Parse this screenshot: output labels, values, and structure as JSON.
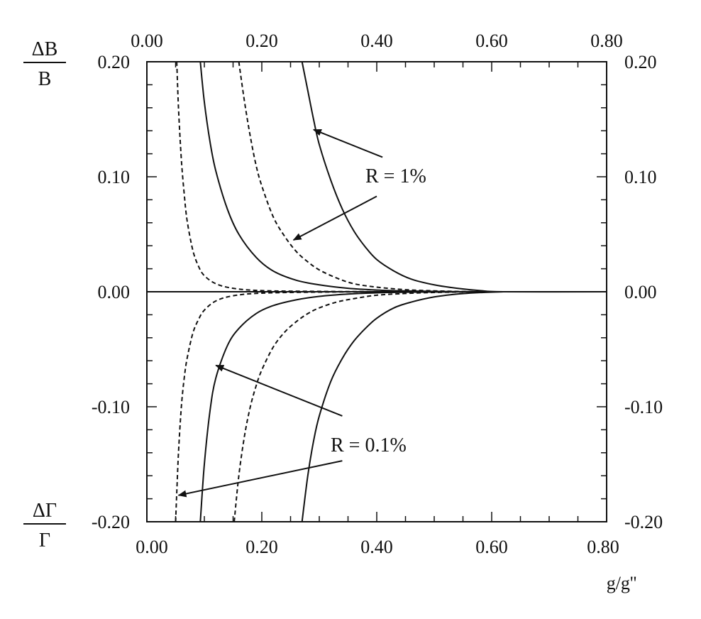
{
  "chart_data": {
    "type": "line",
    "title": "",
    "xlabel": "g/g''",
    "ylabel_top": {
      "numerator": "ΔB",
      "denominator": "B"
    },
    "ylabel_bottom": {
      "numerator": "ΔΓ",
      "denominator": "Γ"
    },
    "xlim": [
      0.0,
      0.8
    ],
    "ylim": [
      -0.2,
      0.2
    ],
    "xticks": [
      "0.00",
      "0.20",
      "0.40",
      "0.60",
      "0.80"
    ],
    "yticks": [
      "-0.20",
      "-0.10",
      "0.00",
      "0.10",
      "0.20"
    ],
    "grid": false,
    "annotations": [
      {
        "text": "R = 1%"
      },
      {
        "text": "R = 0.1%"
      }
    ],
    "series": [
      {
        "group": "R = 1%",
        "style": "solid",
        "panel": "upper",
        "x": [
          0.093,
          0.1,
          0.11,
          0.12,
          0.14,
          0.16,
          0.19,
          0.22,
          0.26,
          0.3,
          0.35,
          0.4,
          0.45,
          0.5,
          0.55,
          0.6,
          0.8
        ],
        "y": [
          0.2,
          0.165,
          0.13,
          0.105,
          0.072,
          0.05,
          0.03,
          0.018,
          0.01,
          0.006,
          0.003,
          0.0015,
          0.0007,
          0.0003,
          0.0001,
          0.0,
          0.0
        ]
      },
      {
        "group": "R = 1%",
        "style": "solid",
        "panel": "upper",
        "x": [
          0.27,
          0.28,
          0.29,
          0.3,
          0.32,
          0.34,
          0.36,
          0.38,
          0.4,
          0.43,
          0.46,
          0.5,
          0.54,
          0.58,
          0.62,
          0.8
        ],
        "y": [
          0.2,
          0.175,
          0.15,
          0.128,
          0.097,
          0.072,
          0.053,
          0.039,
          0.028,
          0.018,
          0.011,
          0.006,
          0.003,
          0.001,
          0.0,
          0.0
        ]
      },
      {
        "group": "R = 1%",
        "style": "dashed",
        "panel": "upper",
        "x": [
          0.052,
          0.055,
          0.06,
          0.065,
          0.07,
          0.08,
          0.09,
          0.1,
          0.12,
          0.15,
          0.2,
          0.3,
          0.4,
          0.5,
          0.6
        ],
        "y": [
          0.2,
          0.16,
          0.115,
          0.085,
          0.062,
          0.036,
          0.022,
          0.014,
          0.007,
          0.003,
          0.001,
          0.0003,
          0.0001,
          0.0,
          0.0
        ]
      },
      {
        "group": "R = 1%",
        "style": "dashed",
        "panel": "upper",
        "x": [
          0.16,
          0.17,
          0.18,
          0.19,
          0.2,
          0.22,
          0.24,
          0.26,
          0.28,
          0.3,
          0.33,
          0.36,
          0.4,
          0.45,
          0.5,
          0.55,
          0.6
        ],
        "y": [
          0.2,
          0.165,
          0.135,
          0.11,
          0.092,
          0.065,
          0.048,
          0.035,
          0.026,
          0.019,
          0.012,
          0.007,
          0.004,
          0.0018,
          0.0008,
          0.0002,
          0.0
        ]
      },
      {
        "group": "R = 0.1%",
        "style": "solid",
        "panel": "lower",
        "x": [
          0.093,
          0.1,
          0.11,
          0.12,
          0.14,
          0.16,
          0.19,
          0.22,
          0.26,
          0.3,
          0.35,
          0.4,
          0.45,
          0.5,
          0.55,
          0.6
        ],
        "y": [
          -0.2,
          -0.15,
          -0.103,
          -0.075,
          -0.047,
          -0.032,
          -0.019,
          -0.012,
          -0.007,
          -0.004,
          -0.002,
          -0.0009,
          -0.0004,
          -0.0002,
          -0.0001,
          0.0
        ]
      },
      {
        "group": "R = 0.1%",
        "style": "solid",
        "panel": "lower",
        "x": [
          0.27,
          0.28,
          0.29,
          0.3,
          0.32,
          0.34,
          0.36,
          0.38,
          0.4,
          0.43,
          0.46,
          0.5,
          0.54,
          0.58,
          0.62
        ],
        "y": [
          -0.2,
          -0.16,
          -0.13,
          -0.108,
          -0.078,
          -0.058,
          -0.043,
          -0.032,
          -0.023,
          -0.014,
          -0.009,
          -0.0045,
          -0.002,
          -0.0007,
          0.0
        ]
      },
      {
        "group": "R = 0.1%",
        "style": "dashed",
        "panel": "lower",
        "x": [
          0.05,
          0.052,
          0.055,
          0.06,
          0.065,
          0.07,
          0.08,
          0.09,
          0.1,
          0.12,
          0.15,
          0.2,
          0.3,
          0.4,
          0.5
        ],
        "y": [
          -0.2,
          -0.175,
          -0.14,
          -0.1,
          -0.075,
          -0.058,
          -0.036,
          -0.024,
          -0.016,
          -0.008,
          -0.0035,
          -0.0012,
          -0.0003,
          -0.0001,
          0.0
        ]
      },
      {
        "group": "R = 0.1%",
        "style": "dashed",
        "panel": "lower",
        "x": [
          0.152,
          0.16,
          0.17,
          0.18,
          0.19,
          0.2,
          0.22,
          0.24,
          0.26,
          0.28,
          0.3,
          0.33,
          0.36,
          0.4,
          0.45,
          0.5,
          0.55,
          0.6
        ],
        "y": [
          -0.2,
          -0.16,
          -0.125,
          -0.1,
          -0.082,
          -0.068,
          -0.048,
          -0.035,
          -0.026,
          -0.019,
          -0.014,
          -0.009,
          -0.006,
          -0.003,
          -0.0015,
          -0.0006,
          -0.0002,
          0.0
        ]
      },
      {
        "group": "baseline",
        "style": "solid",
        "panel": "center",
        "x": [
          0.0,
          0.8
        ],
        "y": [
          0.0,
          0.0
        ]
      }
    ],
    "arrows": [
      {
        "label": "R = 1%",
        "from": [
          0.41,
          0.117
        ],
        "to": [
          0.29,
          0.141
        ]
      },
      {
        "label": "R = 1%",
        "from": [
          0.4,
          0.083
        ],
        "to": [
          0.255,
          0.045
        ]
      },
      {
        "label": "R = 0.1%",
        "from": [
          0.34,
          -0.108
        ],
        "to": [
          0.12,
          -0.064
        ]
      },
      {
        "label": "R = 0.1%",
        "from": [
          0.34,
          -0.147
        ],
        "to": [
          0.055,
          -0.177
        ]
      }
    ]
  }
}
